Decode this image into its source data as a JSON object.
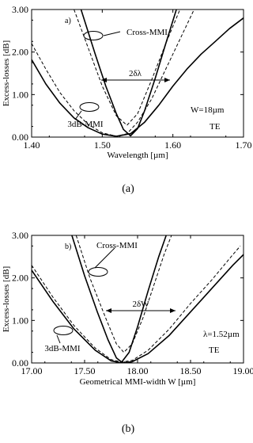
{
  "chart_data": [
    {
      "type": "line",
      "panel_label": "a)",
      "caption": "(a)",
      "xlabel": "Wavelength [µm]",
      "ylabel": "Excess-losses [dB]",
      "xlim": [
        1.4,
        1.7
      ],
      "ylim": [
        0.0,
        3.0
      ],
      "x_ticks": [
        "1.40",
        "1.50",
        "1.60",
        "1.70"
      ],
      "y_ticks": [
        "0.00",
        "1.00",
        "2.00",
        "3.00"
      ],
      "grid": false,
      "annotations": {
        "cross_label": "Cross-MMI",
        "mmi3db_label": "3dB-MMI",
        "delta_label": "2δλ",
        "params_label": "W=18µm",
        "mode_label": "TE"
      },
      "series": [
        {
          "group": "Cross-MMI",
          "style": "solid",
          "points": [
            [
              1.47,
              3.0
            ],
            [
              1.49,
              1.95
            ],
            [
              1.505,
              1.2
            ],
            [
              1.52,
              0.55
            ],
            [
              1.53,
              0.18
            ],
            [
              1.54,
              0.03
            ],
            [
              1.55,
              0.2
            ],
            [
              1.56,
              0.62
            ],
            [
              1.575,
              1.38
            ],
            [
              1.59,
              2.2
            ],
            [
              1.605,
              3.0
            ]
          ]
        },
        {
          "group": "Cross-MMI",
          "style": "dashed",
          "points": [
            [
              1.46,
              3.0
            ],
            [
              1.48,
              2.1
            ],
            [
              1.5,
              1.2
            ],
            [
              1.52,
              0.5
            ],
            [
              1.535,
              0.28
            ],
            [
              1.55,
              0.55
            ],
            [
              1.57,
              1.35
            ],
            [
              1.59,
              2.2
            ],
            [
              1.61,
              3.0
            ]
          ]
        },
        {
          "group": "3dB-MMI",
          "style": "solid",
          "points": [
            [
              1.4,
              1.82
            ],
            [
              1.42,
              1.25
            ],
            [
              1.44,
              0.8
            ],
            [
              1.46,
              0.45
            ],
            [
              1.48,
              0.22
            ],
            [
              1.5,
              0.07
            ],
            [
              1.52,
              0.02
            ],
            [
              1.54,
              0.08
            ],
            [
              1.56,
              0.35
            ],
            [
              1.58,
              0.75
            ],
            [
              1.6,
              1.2
            ],
            [
              1.62,
              1.6
            ],
            [
              1.64,
              1.95
            ],
            [
              1.66,
              2.25
            ],
            [
              1.68,
              2.55
            ],
            [
              1.7,
              2.8
            ]
          ]
        },
        {
          "group": "3dB-MMI",
          "style": "dashed",
          "points": [
            [
              1.4,
              2.2
            ],
            [
              1.42,
              1.6
            ],
            [
              1.44,
              1.05
            ],
            [
              1.46,
              0.62
            ],
            [
              1.48,
              0.3
            ],
            [
              1.5,
              0.1
            ],
            [
              1.52,
              0.02
            ],
            [
              1.535,
              0.08
            ],
            [
              1.55,
              0.35
            ],
            [
              1.57,
              0.9
            ],
            [
              1.59,
              1.6
            ],
            [
              1.61,
              2.3
            ],
            [
              1.63,
              3.0
            ]
          ]
        }
      ]
    },
    {
      "type": "line",
      "panel_label": "b)",
      "caption": "(b)",
      "xlabel": "Geometrical MMI-width W [µm]",
      "ylabel": "Excess-losses [dB]",
      "xlim": [
        17.0,
        19.0
      ],
      "ylim": [
        0.0,
        3.0
      ],
      "x_ticks": [
        "17.00",
        "17.50",
        "18.00",
        "18.50",
        "19.00"
      ],
      "y_ticks": [
        "0.00",
        "1.00",
        "2.00",
        "3.00"
      ],
      "grid": false,
      "annotations": {
        "cross_label": "Cross-MMI",
        "mmi3db_label": "3dB-MMI",
        "delta_label": "2δW",
        "params_label": "λ=1.52µm",
        "mode_label": "TE"
      },
      "series": [
        {
          "group": "Cross-MMI",
          "style": "solid",
          "points": [
            [
              17.38,
              3.0
            ],
            [
              17.5,
              2.05
            ],
            [
              17.62,
              1.2
            ],
            [
              17.72,
              0.55
            ],
            [
              17.8,
              0.12
            ],
            [
              17.85,
              0.02
            ],
            [
              17.92,
              0.25
            ],
            [
              18.0,
              0.85
            ],
            [
              18.1,
              1.7
            ],
            [
              18.2,
              2.5
            ],
            [
              18.27,
              3.0
            ]
          ]
        },
        {
          "group": "Cross-MMI",
          "style": "dashed",
          "points": [
            [
              17.42,
              3.0
            ],
            [
              17.55,
              2.0
            ],
            [
              17.7,
              1.05
            ],
            [
              17.8,
              0.45
            ],
            [
              17.87,
              0.25
            ],
            [
              17.95,
              0.45
            ],
            [
              18.05,
              1.05
            ],
            [
              18.15,
              1.8
            ],
            [
              18.25,
              2.55
            ],
            [
              18.32,
              3.0
            ]
          ]
        },
        {
          "group": "3dB-MMI",
          "style": "solid",
          "points": [
            [
              17.0,
              2.18
            ],
            [
              17.2,
              1.45
            ],
            [
              17.4,
              0.8
            ],
            [
              17.6,
              0.3
            ],
            [
              17.75,
              0.05
            ],
            [
              17.85,
              0.0
            ],
            [
              17.95,
              0.03
            ],
            [
              18.1,
              0.22
            ],
            [
              18.3,
              0.65
            ],
            [
              18.5,
              1.2
            ],
            [
              18.7,
              1.75
            ],
            [
              18.9,
              2.3
            ],
            [
              19.0,
              2.55
            ]
          ]
        },
        {
          "group": "3dB-MMI",
          "style": "dashed",
          "points": [
            [
              17.0,
              2.3
            ],
            [
              17.2,
              1.55
            ],
            [
              17.4,
              0.88
            ],
            [
              17.6,
              0.35
            ],
            [
              17.75,
              0.08
            ],
            [
              17.85,
              0.02
            ],
            [
              17.95,
              0.06
            ],
            [
              18.1,
              0.3
            ],
            [
              18.3,
              0.8
            ],
            [
              18.5,
              1.4
            ],
            [
              18.7,
              1.95
            ],
            [
              18.9,
              2.55
            ],
            [
              18.97,
              2.75
            ]
          ]
        }
      ]
    }
  ]
}
